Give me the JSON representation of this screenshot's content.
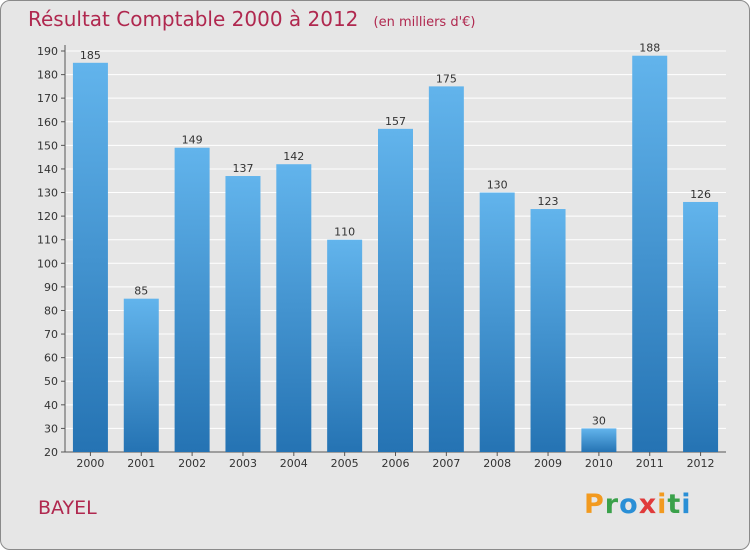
{
  "header": {
    "title": "Résultat Comptable 2000 à 2012",
    "subtitle": "(en milliers d'€)"
  },
  "footer": {
    "place": "BAYEL",
    "logo_letters": [
      "P",
      "r",
      "o",
      "x",
      "i",
      "t",
      "i"
    ],
    "logo_colors": [
      "#f29a1f",
      "#3aa14a",
      "#2a8fd6",
      "#e03a3a",
      "#f29a1f",
      "#3aa14a",
      "#2a8fd6"
    ]
  },
  "colors": {
    "bar_top": "#62b4ec",
    "bar_bottom": "#2573b3",
    "text": "#333333",
    "grid": "#ffffff"
  },
  "chart_data": {
    "type": "bar",
    "title": "Résultat Comptable 2000 à 2012",
    "xlabel": "",
    "ylabel": "",
    "categories": [
      "2000",
      "2001",
      "2002",
      "2003",
      "2004",
      "2005",
      "2006",
      "2007",
      "2008",
      "2009",
      "2010",
      "2011",
      "2012"
    ],
    "values": [
      185,
      85,
      149,
      137,
      142,
      110,
      157,
      175,
      130,
      123,
      30,
      188,
      126
    ],
    "ylim": [
      20,
      190
    ],
    "yticks": [
      20,
      30,
      40,
      50,
      60,
      70,
      80,
      90,
      100,
      110,
      120,
      130,
      140,
      150,
      160,
      170,
      180,
      190
    ],
    "grid": true
  }
}
